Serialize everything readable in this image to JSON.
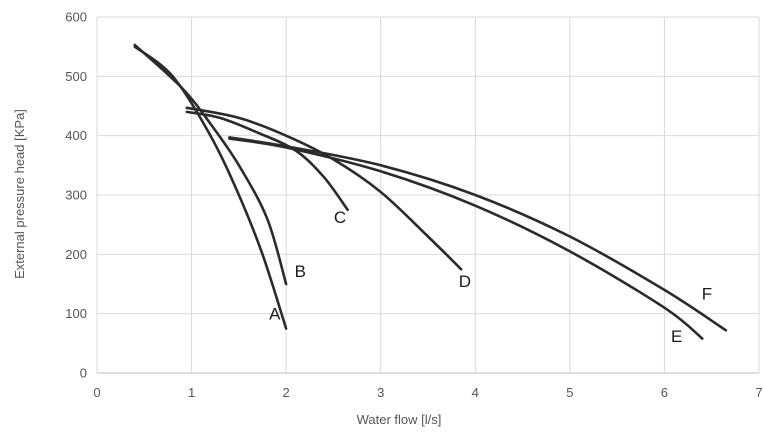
{
  "chart_data": {
    "type": "line",
    "title": "",
    "xlabel": "Water flow [l/s]",
    "ylabel": "External pressure head [KPa]",
    "xlim": [
      0,
      7
    ],
    "ylim": [
      0,
      600
    ],
    "x_ticks": [
      "0",
      "1",
      "2",
      "3",
      "4",
      "5",
      "6",
      "7"
    ],
    "y_ticks": [
      "0",
      "100",
      "200",
      "300",
      "400",
      "500",
      "600"
    ],
    "grid": "both",
    "series_color": "#2b2b2b",
    "series": [
      {
        "name": "A",
        "points": [
          [
            0.4,
            550
          ],
          [
            0.8,
            500
          ],
          [
            1.2,
            400
          ],
          [
            1.5,
            300
          ],
          [
            1.75,
            200
          ],
          [
            2.0,
            75
          ]
        ]
      },
      {
        "name": "B",
        "points": [
          [
            0.4,
            553
          ],
          [
            0.9,
            480
          ],
          [
            1.2,
            420
          ],
          [
            1.5,
            350
          ],
          [
            1.8,
            260
          ],
          [
            2.0,
            150
          ]
        ]
      },
      {
        "name": "C",
        "points": [
          [
            0.95,
            440
          ],
          [
            1.3,
            430
          ],
          [
            1.7,
            405
          ],
          [
            2.1,
            375
          ],
          [
            2.4,
            330
          ],
          [
            2.65,
            275
          ]
        ]
      },
      {
        "name": "D",
        "points": [
          [
            0.95,
            447
          ],
          [
            1.5,
            430
          ],
          [
            2.0,
            400
          ],
          [
            2.5,
            360
          ],
          [
            3.0,
            305
          ],
          [
            3.5,
            230
          ],
          [
            3.85,
            175
          ]
        ]
      },
      {
        "name": "E",
        "points": [
          [
            1.4,
            395
          ],
          [
            2.0,
            380
          ],
          [
            3.0,
            340
          ],
          [
            4.0,
            282
          ],
          [
            5.0,
            205
          ],
          [
            6.0,
            110
          ],
          [
            6.4,
            58
          ]
        ]
      },
      {
        "name": "F",
        "points": [
          [
            1.4,
            397
          ],
          [
            2.0,
            382
          ],
          [
            3.0,
            350
          ],
          [
            4.0,
            300
          ],
          [
            5.0,
            230
          ],
          [
            6.0,
            140
          ],
          [
            6.65,
            72
          ]
        ]
      }
    ],
    "curve_labels": [
      {
        "text": "A",
        "x": 1.88,
        "y": 90
      },
      {
        "text": "B",
        "x": 2.15,
        "y": 162
      },
      {
        "text": "C",
        "x": 2.57,
        "y": 253
      },
      {
        "text": "D",
        "x": 3.89,
        "y": 145
      },
      {
        "text": "E",
        "x": 6.13,
        "y": 52
      },
      {
        "text": "F",
        "x": 6.45,
        "y": 124
      }
    ]
  }
}
